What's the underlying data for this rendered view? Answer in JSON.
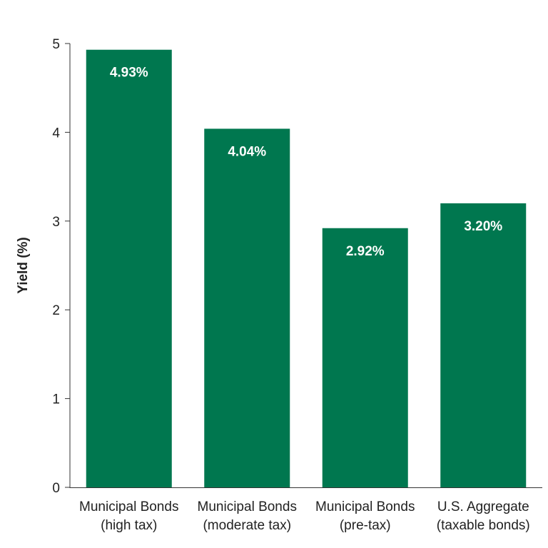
{
  "chart_data": {
    "type": "bar",
    "title": "",
    "xlabel": "",
    "ylabel": "Yield (%)",
    "ylim": [
      0,
      5
    ],
    "yticks": [
      0,
      1,
      2,
      3,
      4,
      5
    ],
    "grid": false,
    "legend": "none",
    "bar_color": "#00774f",
    "categories": [
      [
        "Municipal Bonds",
        "(high tax)"
      ],
      [
        "Municipal Bonds",
        "(moderate tax)"
      ],
      [
        "Municipal Bonds",
        "(pre-tax)"
      ],
      [
        "U.S. Aggregate",
        "(taxable bonds)"
      ]
    ],
    "values": [
      4.93,
      4.04,
      2.92,
      3.2
    ],
    "value_labels": [
      "4.93%",
      "4.04%",
      "2.92%",
      "3.20%"
    ]
  }
}
